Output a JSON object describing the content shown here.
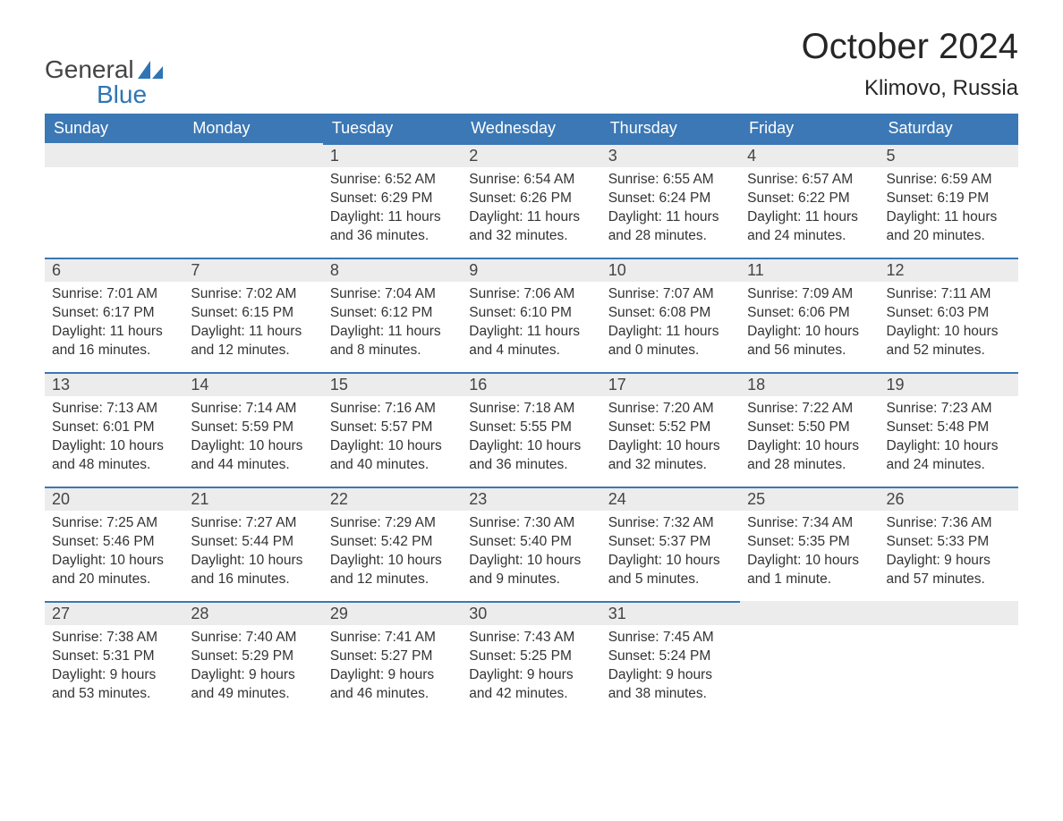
{
  "logo": {
    "line1": "General",
    "line2": "Blue",
    "accent_color": "#2e75b6"
  },
  "title": "October 2024",
  "subtitle": "Klimovo, Russia",
  "colors": {
    "header_bg": "#3b78b5",
    "header_text": "#ffffff",
    "daynum_bg": "#ececec",
    "daynum_border": "#3b78b5",
    "body_text": "#333333",
    "page_bg": "#ffffff"
  },
  "day_headers": [
    "Sunday",
    "Monday",
    "Tuesday",
    "Wednesday",
    "Thursday",
    "Friday",
    "Saturday"
  ],
  "weeks": [
    [
      null,
      null,
      {
        "n": "1",
        "sr": "Sunrise: 6:52 AM",
        "ss": "Sunset: 6:29 PM",
        "d1": "Daylight: 11 hours",
        "d2": "and 36 minutes."
      },
      {
        "n": "2",
        "sr": "Sunrise: 6:54 AM",
        "ss": "Sunset: 6:26 PM",
        "d1": "Daylight: 11 hours",
        "d2": "and 32 minutes."
      },
      {
        "n": "3",
        "sr": "Sunrise: 6:55 AM",
        "ss": "Sunset: 6:24 PM",
        "d1": "Daylight: 11 hours",
        "d2": "and 28 minutes."
      },
      {
        "n": "4",
        "sr": "Sunrise: 6:57 AM",
        "ss": "Sunset: 6:22 PM",
        "d1": "Daylight: 11 hours",
        "d2": "and 24 minutes."
      },
      {
        "n": "5",
        "sr": "Sunrise: 6:59 AM",
        "ss": "Sunset: 6:19 PM",
        "d1": "Daylight: 11 hours",
        "d2": "and 20 minutes."
      }
    ],
    [
      {
        "n": "6",
        "sr": "Sunrise: 7:01 AM",
        "ss": "Sunset: 6:17 PM",
        "d1": "Daylight: 11 hours",
        "d2": "and 16 minutes."
      },
      {
        "n": "7",
        "sr": "Sunrise: 7:02 AM",
        "ss": "Sunset: 6:15 PM",
        "d1": "Daylight: 11 hours",
        "d2": "and 12 minutes."
      },
      {
        "n": "8",
        "sr": "Sunrise: 7:04 AM",
        "ss": "Sunset: 6:12 PM",
        "d1": "Daylight: 11 hours",
        "d2": "and 8 minutes."
      },
      {
        "n": "9",
        "sr": "Sunrise: 7:06 AM",
        "ss": "Sunset: 6:10 PM",
        "d1": "Daylight: 11 hours",
        "d2": "and 4 minutes."
      },
      {
        "n": "10",
        "sr": "Sunrise: 7:07 AM",
        "ss": "Sunset: 6:08 PM",
        "d1": "Daylight: 11 hours",
        "d2": "and 0 minutes."
      },
      {
        "n": "11",
        "sr": "Sunrise: 7:09 AM",
        "ss": "Sunset: 6:06 PM",
        "d1": "Daylight: 10 hours",
        "d2": "and 56 minutes."
      },
      {
        "n": "12",
        "sr": "Sunrise: 7:11 AM",
        "ss": "Sunset: 6:03 PM",
        "d1": "Daylight: 10 hours",
        "d2": "and 52 minutes."
      }
    ],
    [
      {
        "n": "13",
        "sr": "Sunrise: 7:13 AM",
        "ss": "Sunset: 6:01 PM",
        "d1": "Daylight: 10 hours",
        "d2": "and 48 minutes."
      },
      {
        "n": "14",
        "sr": "Sunrise: 7:14 AM",
        "ss": "Sunset: 5:59 PM",
        "d1": "Daylight: 10 hours",
        "d2": "and 44 minutes."
      },
      {
        "n": "15",
        "sr": "Sunrise: 7:16 AM",
        "ss": "Sunset: 5:57 PM",
        "d1": "Daylight: 10 hours",
        "d2": "and 40 minutes."
      },
      {
        "n": "16",
        "sr": "Sunrise: 7:18 AM",
        "ss": "Sunset: 5:55 PM",
        "d1": "Daylight: 10 hours",
        "d2": "and 36 minutes."
      },
      {
        "n": "17",
        "sr": "Sunrise: 7:20 AM",
        "ss": "Sunset: 5:52 PM",
        "d1": "Daylight: 10 hours",
        "d2": "and 32 minutes."
      },
      {
        "n": "18",
        "sr": "Sunrise: 7:22 AM",
        "ss": "Sunset: 5:50 PM",
        "d1": "Daylight: 10 hours",
        "d2": "and 28 minutes."
      },
      {
        "n": "19",
        "sr": "Sunrise: 7:23 AM",
        "ss": "Sunset: 5:48 PM",
        "d1": "Daylight: 10 hours",
        "d2": "and 24 minutes."
      }
    ],
    [
      {
        "n": "20",
        "sr": "Sunrise: 7:25 AM",
        "ss": "Sunset: 5:46 PM",
        "d1": "Daylight: 10 hours",
        "d2": "and 20 minutes."
      },
      {
        "n": "21",
        "sr": "Sunrise: 7:27 AM",
        "ss": "Sunset: 5:44 PM",
        "d1": "Daylight: 10 hours",
        "d2": "and 16 minutes."
      },
      {
        "n": "22",
        "sr": "Sunrise: 7:29 AM",
        "ss": "Sunset: 5:42 PM",
        "d1": "Daylight: 10 hours",
        "d2": "and 12 minutes."
      },
      {
        "n": "23",
        "sr": "Sunrise: 7:30 AM",
        "ss": "Sunset: 5:40 PM",
        "d1": "Daylight: 10 hours",
        "d2": "and 9 minutes."
      },
      {
        "n": "24",
        "sr": "Sunrise: 7:32 AM",
        "ss": "Sunset: 5:37 PM",
        "d1": "Daylight: 10 hours",
        "d2": "and 5 minutes."
      },
      {
        "n": "25",
        "sr": "Sunrise: 7:34 AM",
        "ss": "Sunset: 5:35 PM",
        "d1": "Daylight: 10 hours",
        "d2": "and 1 minute."
      },
      {
        "n": "26",
        "sr": "Sunrise: 7:36 AM",
        "ss": "Sunset: 5:33 PM",
        "d1": "Daylight: 9 hours",
        "d2": "and 57 minutes."
      }
    ],
    [
      {
        "n": "27",
        "sr": "Sunrise: 7:38 AM",
        "ss": "Sunset: 5:31 PM",
        "d1": "Daylight: 9 hours",
        "d2": "and 53 minutes."
      },
      {
        "n": "28",
        "sr": "Sunrise: 7:40 AM",
        "ss": "Sunset: 5:29 PM",
        "d1": "Daylight: 9 hours",
        "d2": "and 49 minutes."
      },
      {
        "n": "29",
        "sr": "Sunrise: 7:41 AM",
        "ss": "Sunset: 5:27 PM",
        "d1": "Daylight: 9 hours",
        "d2": "and 46 minutes."
      },
      {
        "n": "30",
        "sr": "Sunrise: 7:43 AM",
        "ss": "Sunset: 5:25 PM",
        "d1": "Daylight: 9 hours",
        "d2": "and 42 minutes."
      },
      {
        "n": "31",
        "sr": "Sunrise: 7:45 AM",
        "ss": "Sunset: 5:24 PM",
        "d1": "Daylight: 9 hours",
        "d2": "and 38 minutes."
      },
      null,
      null
    ]
  ]
}
